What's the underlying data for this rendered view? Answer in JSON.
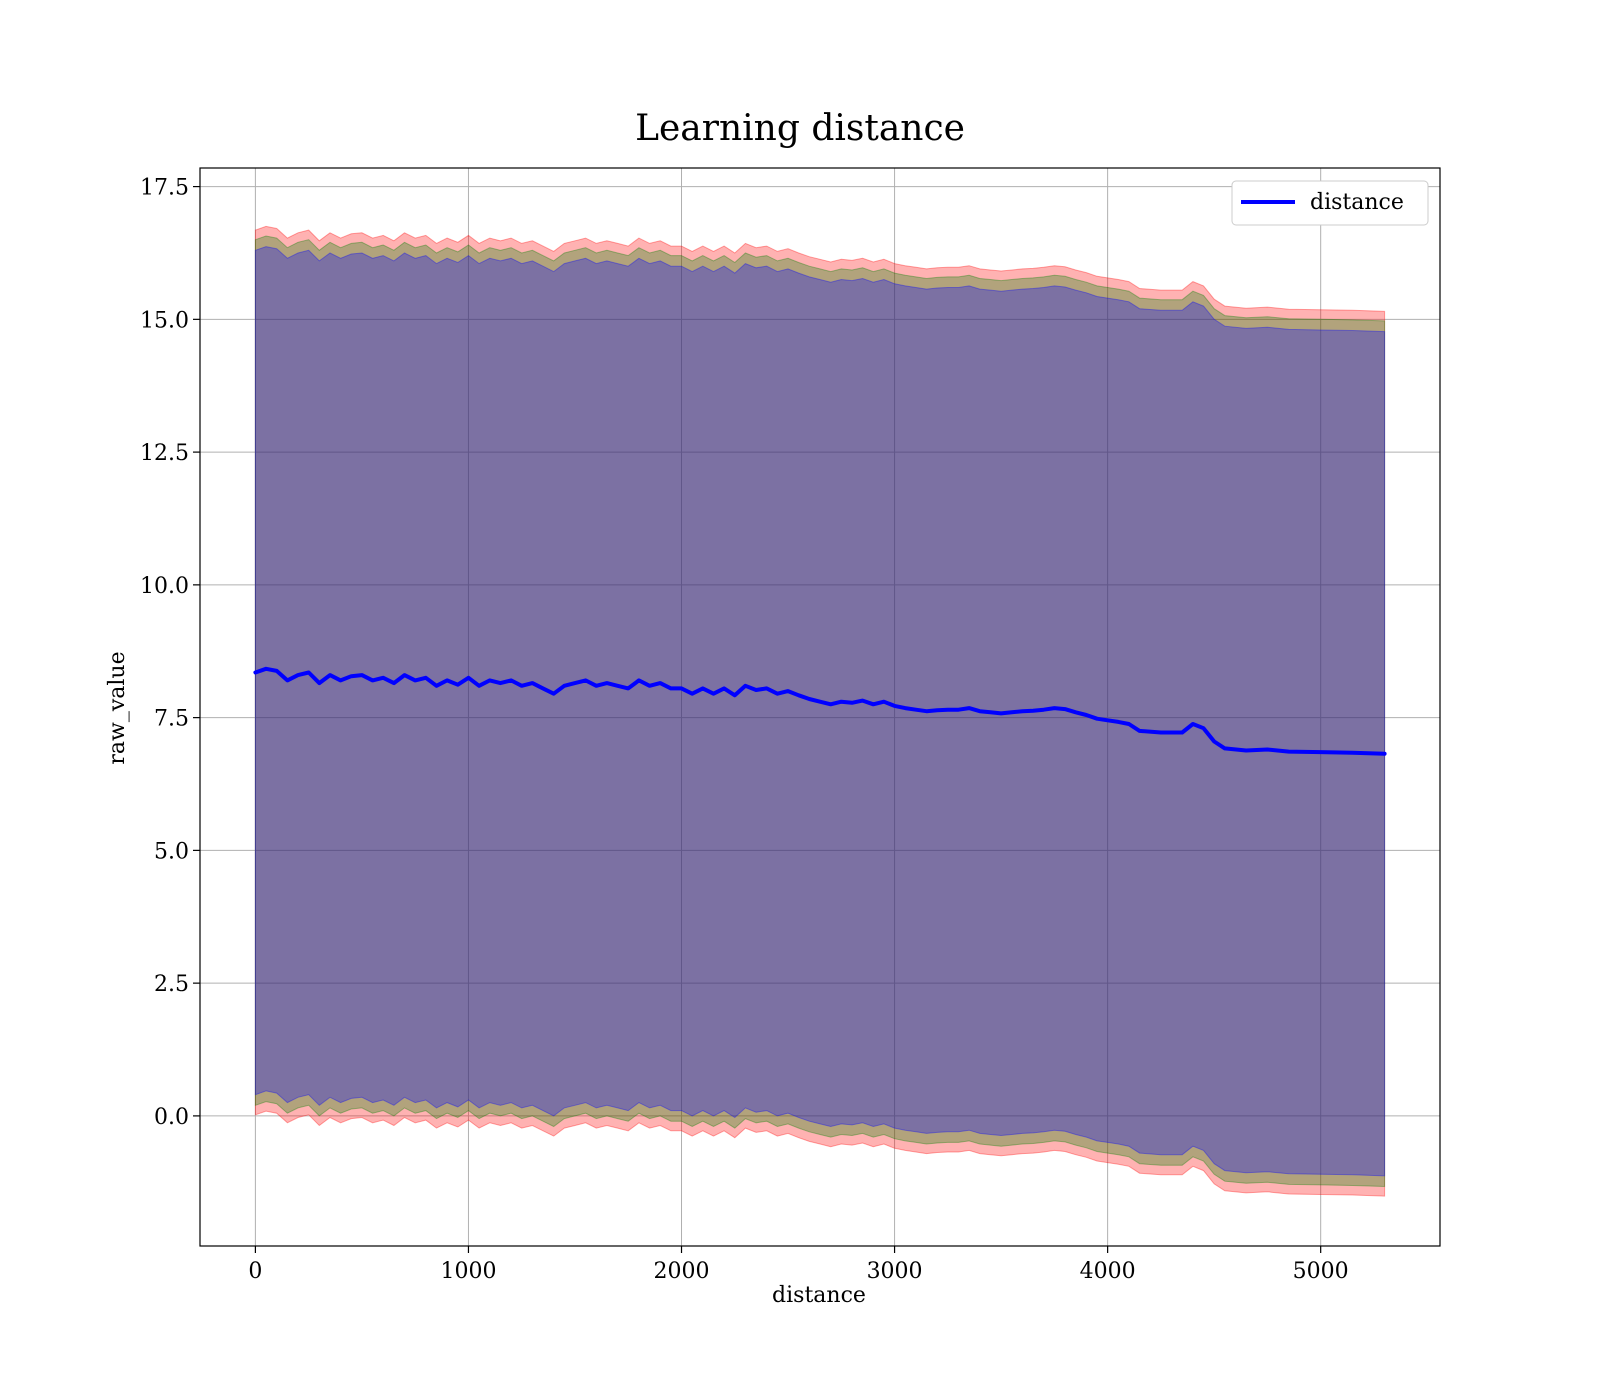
{
  "chart_data": {
    "type": "line",
    "title": "Learning distance",
    "xlabel": "distance",
    "ylabel": "raw_value",
    "xlim": [
      -260,
      5560
    ],
    "ylim": [
      -2.45,
      17.85
    ],
    "x_ticks": [
      0,
      1000,
      2000,
      3000,
      4000,
      5000
    ],
    "x_tick_labels": [
      "0",
      "1000",
      "2000",
      "3000",
      "4000",
      "5000"
    ],
    "y_ticks": [
      0.0,
      2.5,
      5.0,
      7.5,
      10.0,
      12.5,
      15.0,
      17.5
    ],
    "y_tick_labels": [
      "0.0",
      "2.5",
      "5.0",
      "7.5",
      "10.0",
      "12.5",
      "15.0",
      "17.5"
    ],
    "grid": true,
    "legend": {
      "placement": "top-right",
      "entries": [
        "distance"
      ]
    },
    "series": [
      {
        "name": "distance",
        "color": "#0000ff",
        "x": [
          0,
          50,
          100,
          150,
          200,
          250,
          300,
          350,
          400,
          450,
          500,
          550,
          600,
          650,
          700,
          750,
          800,
          850,
          900,
          950,
          1000,
          1050,
          1100,
          1150,
          1200,
          1250,
          1300,
          1350,
          1400,
          1450,
          1500,
          1550,
          1600,
          1650,
          1700,
          1750,
          1800,
          1850,
          1900,
          1950,
          2000,
          2050,
          2100,
          2150,
          2200,
          2250,
          2300,
          2350,
          2400,
          2450,
          2500,
          2550,
          2600,
          2650,
          2700,
          2750,
          2800,
          2850,
          2900,
          2950,
          3000,
          3050,
          3100,
          3150,
          3200,
          3250,
          3300,
          3350,
          3400,
          3450,
          3500,
          3550,
          3600,
          3650,
          3700,
          3750,
          3800,
          3850,
          3900,
          3950,
          4000,
          4050,
          4100,
          4150,
          4250,
          4350,
          4400,
          4450,
          4500,
          4550,
          4650,
          4750,
          4850,
          5000,
          5150,
          5300
        ],
        "y": [
          8.35,
          8.42,
          8.38,
          8.2,
          8.3,
          8.35,
          8.15,
          8.3,
          8.2,
          8.28,
          8.3,
          8.2,
          8.25,
          8.15,
          8.3,
          8.2,
          8.25,
          8.1,
          8.2,
          8.12,
          8.25,
          8.1,
          8.2,
          8.15,
          8.2,
          8.1,
          8.15,
          8.05,
          7.95,
          8.1,
          8.15,
          8.2,
          8.1,
          8.15,
          8.1,
          8.05,
          8.2,
          8.1,
          8.15,
          8.05,
          8.05,
          7.95,
          8.05,
          7.95,
          8.05,
          7.92,
          8.1,
          8.02,
          8.05,
          7.95,
          8.0,
          7.92,
          7.85,
          7.8,
          7.75,
          7.8,
          7.78,
          7.82,
          7.75,
          7.8,
          7.72,
          7.68,
          7.65,
          7.62,
          7.64,
          7.65,
          7.65,
          7.68,
          7.62,
          7.6,
          7.58,
          7.6,
          7.62,
          7.63,
          7.65,
          7.68,
          7.66,
          7.6,
          7.55,
          7.48,
          7.45,
          7.42,
          7.38,
          7.25,
          7.22,
          7.22,
          7.38,
          7.3,
          7.05,
          6.92,
          6.88,
          6.9,
          6.86,
          6.85,
          6.84,
          6.82
        ]
      }
    ],
    "bands": [
      {
        "name": "",
        "color": "#ff0000",
        "opacity": 0.3,
        "half_width": 8.33
      },
      {
        "name": "",
        "color": "#008000",
        "opacity": 0.3,
        "half_width": 8.15
      },
      {
        "name": "",
        "color": "#0000ff",
        "opacity": 0.3,
        "half_width": 7.95
      }
    ]
  }
}
